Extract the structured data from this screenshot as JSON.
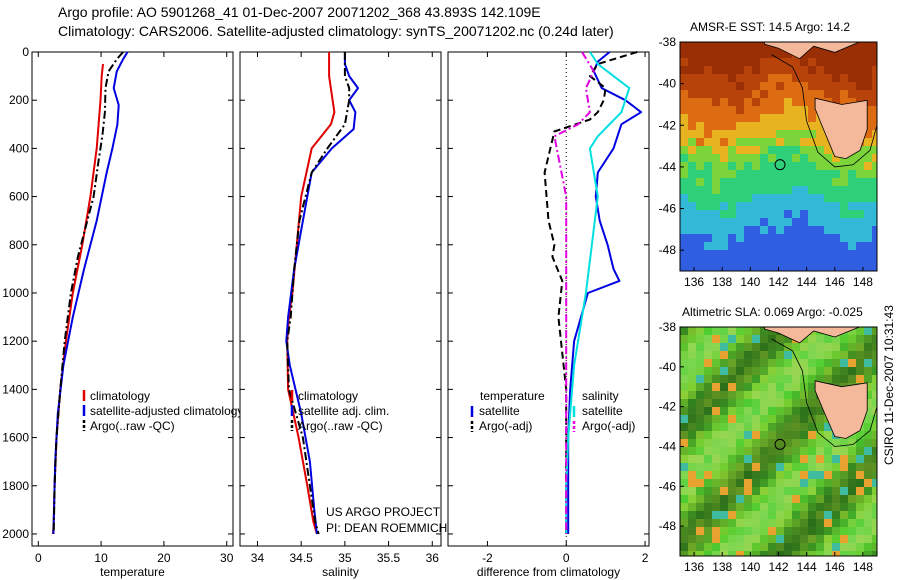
{
  "header": {
    "line1": "Argo profile: AO 5901268_41 01-Dec-2007 20071202_368 43.893S 142.109E",
    "line2": "Climatology: CARS2006. Satellite-adjusted climatology: synTS_20071202.nc (0.24d later)"
  },
  "side_label": "CSIRO 11-Dec-2007 10:31:43",
  "colors": {
    "climatology": "#e00000",
    "satellite": "#0000e0",
    "argo": "#000000",
    "sat_salinity": "#00e0e0",
    "argo_salinity": "#e000e0",
    "land": "#f4b89a"
  },
  "chart_data": [
    {
      "type": "line",
      "xlabel": "temperature",
      "ylabel": "",
      "xlim": [
        -1,
        31
      ],
      "ylim": [
        2050,
        0
      ],
      "xticks": [
        0,
        10,
        20,
        30
      ],
      "yticks": [
        0,
        200,
        400,
        600,
        800,
        1000,
        1200,
        1400,
        1600,
        1800,
        2000
      ],
      "legend": [
        "climatology",
        "satellite-adjusted climatology",
        "Argo(..raw -QC)"
      ],
      "series": [
        {
          "name": "climatology",
          "style": "solid",
          "color": "#e00000",
          "x": [
            10.3,
            10.1,
            9.9,
            9.6,
            9.3,
            8.3,
            7.0,
            5.5,
            4.4,
            3.5,
            2.9,
            2.6,
            2.45,
            2.35
          ],
          "y": [
            50,
            100,
            200,
            300,
            400,
            600,
            800,
            1000,
            1200,
            1400,
            1600,
            1800,
            1950,
            2000
          ]
        },
        {
          "name": "satellite-adjusted climatology",
          "style": "solid",
          "color": "#0000e0",
          "x": [
            14.2,
            13.5,
            12.5,
            12.0,
            12.8,
            12.6,
            11.8,
            10.9,
            9.3,
            7.3,
            5.5,
            4.0,
            3.1,
            2.7,
            2.5,
            2.4
          ],
          "y": [
            0,
            30,
            80,
            150,
            220,
            300,
            400,
            500,
            700,
            900,
            1100,
            1300,
            1500,
            1700,
            1900,
            2000
          ]
        },
        {
          "name": "Argo(..raw -QC)",
          "style": "dashdot",
          "color": "#000000",
          "x": [
            13.5,
            12.5,
            11.2,
            10.7,
            10.6,
            10.4,
            10.2,
            9.6,
            8.8,
            7.8,
            6.3,
            5.2,
            4.2,
            3.5,
            2.9,
            2.6,
            2.45
          ],
          "y": [
            0,
            30,
            80,
            150,
            250,
            300,
            350,
            450,
            600,
            700,
            850,
            1000,
            1200,
            1400,
            1600,
            1800,
            2000
          ]
        }
      ]
    },
    {
      "type": "line",
      "xlabel": "salinity",
      "ylabel": "",
      "xlim": [
        33.8,
        36.1
      ],
      "ylim": [
        2050,
        0
      ],
      "xticks": [
        34,
        34.5,
        35,
        35.5,
        36
      ],
      "legend": [
        "climatology",
        "satellite adj. clim.",
        "Argo(..raw -QC)"
      ],
      "annotation": [
        "US ARGO PROJECT",
        "PI: DEAN ROEMMICH"
      ],
      "series": [
        {
          "name": "climatology",
          "style": "solid",
          "color": "#e00000",
          "x": [
            34.82,
            34.82,
            34.86,
            34.88,
            34.84,
            34.62,
            34.5,
            34.45,
            34.4,
            34.36,
            34.34,
            34.35,
            34.47,
            34.57,
            34.64,
            34.68
          ],
          "y": [
            0,
            100,
            200,
            250,
            300,
            400,
            600,
            800,
            1000,
            1100,
            1200,
            1400,
            1600,
            1800,
            1950,
            2000
          ]
        },
        {
          "name": "satellite adj. clim.",
          "style": "solid",
          "color": "#0000e0",
          "x": [
            35.0,
            35.0,
            35.05,
            35.15,
            35.05,
            35.12,
            35.1,
            34.85,
            34.62,
            34.52,
            34.42,
            34.35,
            34.33,
            34.37,
            34.5,
            34.6,
            34.65,
            34.68
          ],
          "y": [
            0,
            50,
            100,
            150,
            200,
            250,
            320,
            400,
            500,
            700,
            900,
            1100,
            1200,
            1300,
            1500,
            1700,
            1900,
            2000
          ]
        },
        {
          "name": "Argo(..raw -QC)",
          "style": "dashdot",
          "color": "#000000",
          "x": [
            35.0,
            35.0,
            35.05,
            35.05,
            35.0,
            34.8,
            34.62,
            34.48,
            34.42,
            34.38,
            34.34,
            34.36,
            34.52,
            34.6,
            34.66,
            34.7
          ],
          "y": [
            0,
            100,
            150,
            200,
            300,
            400,
            500,
            700,
            900,
            1100,
            1200,
            1400,
            1600,
            1800,
            1950,
            2000
          ]
        }
      ]
    },
    {
      "type": "line",
      "xlabel": "difference from climatology",
      "ylabel": "",
      "xlim": [
        -3,
        2.1
      ],
      "ylim": [
        2050,
        0
      ],
      "xticks": [
        -2,
        0,
        2
      ],
      "legend_left": {
        "title": "temperature",
        "items": [
          "satellite",
          "Argo(-adj)"
        ]
      },
      "legend_right": {
        "title": "salinity",
        "items": [
          "satellite",
          "Argo(-adj)"
        ]
      },
      "series": [
        {
          "name": "temperature satellite",
          "style": "solid",
          "color": "#0000e0",
          "x": [
            1.1,
            0.8,
            0.7,
            0.9,
            1.5,
            1.9,
            1.4,
            1.2,
            0.8,
            0.75,
            0.85,
            1.05,
            1.2,
            1.35,
            0.55,
            0.2,
            0.1,
            0.05,
            0.05,
            0.05
          ],
          "y": [
            0,
            40,
            80,
            150,
            200,
            250,
            300,
            400,
            500,
            600,
            700,
            800,
            900,
            950,
            1000,
            1200,
            1400,
            1600,
            1800,
            2000
          ]
        },
        {
          "name": "temperature Argo(-adj)",
          "style": "dashed",
          "color": "#000000",
          "x": [
            1.8,
            0.8,
            0.6,
            1.0,
            0.95,
            0.8,
            0.6,
            -0.3,
            -0.55,
            -0.45,
            -0.3,
            -0.35,
            -0.1,
            -0.2,
            0.0,
            0.0,
            0.0
          ],
          "y": [
            0,
            50,
            100,
            150,
            200,
            250,
            280,
            330,
            500,
            700,
            800,
            850,
            950,
            1100,
            1400,
            1800,
            2000
          ]
        },
        {
          "name": "salinity satellite",
          "style": "solid",
          "color": "#00e0e0",
          "x": [
            0.6,
            0.8,
            1.2,
            1.6,
            1.4,
            0.8,
            0.6,
            0.8,
            0.5,
            0.2,
            0.05,
            0.0,
            0.0
          ],
          "y": [
            0,
            50,
            100,
            150,
            250,
            350,
            400,
            600,
            1000,
            1300,
            1600,
            1800,
            2000
          ]
        },
        {
          "name": "salinity Argo(-adj)",
          "style": "dashdot",
          "color": "#e000e0",
          "x": [
            0.4,
            0.7,
            0.5,
            0.6,
            0.3,
            -0.3,
            0.0,
            0.0,
            0.0
          ],
          "y": [
            0,
            80,
            150,
            250,
            300,
            350,
            600,
            1000,
            2000
          ]
        }
      ]
    },
    {
      "type": "heatmap",
      "title": "AMSR-E SST: 14.5 Argo: 14.2",
      "xlim": [
        135,
        149
      ],
      "ylim": [
        -49,
        -38
      ],
      "xticks": [
        136,
        138,
        140,
        142,
        144,
        146,
        148
      ],
      "yticks": [
        -38,
        -40,
        -42,
        -44,
        -46,
        -48
      ],
      "marker": {
        "lon": 142.109,
        "lat": -43.893
      }
    },
    {
      "type": "heatmap",
      "title": "Altimetric SLA: 0.069 Argo: -0.025",
      "xlim": [
        135,
        149
      ],
      "ylim": [
        -49.5,
        -38
      ],
      "xticks": [
        136,
        138,
        140,
        142,
        144,
        146,
        148
      ],
      "yticks": [
        -38,
        -40,
        -42,
        -44,
        -46,
        -48
      ],
      "marker": {
        "lon": 142.109,
        "lat": -43.893
      }
    }
  ]
}
